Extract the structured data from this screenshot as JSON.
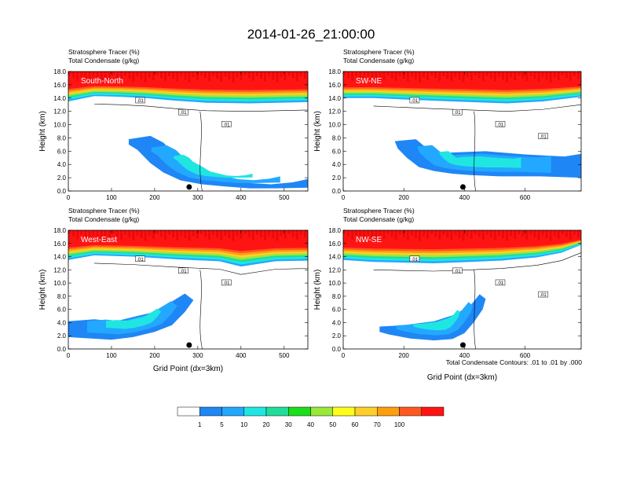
{
  "figure_title": "2014-01-26_21:00:00",
  "chart_data": [
    {
      "type": "heatmap",
      "subtitle_line1": "Stratosphere Tracer   (%)",
      "subtitle_line2": "Total Condensate   (g/kg)",
      "panel_label": "South-North",
      "ylabel": "Height (km)",
      "xlabel": "",
      "xlim": [
        0,
        555
      ],
      "ylim": [
        0.0,
        18.0
      ],
      "xticks": [
        "0",
        "100",
        "200",
        "300",
        "400",
        "500"
      ],
      "yticks": [
        "0.0",
        "2.0",
        "4.0",
        "6.0",
        "8.0",
        "10.0",
        "12.0",
        "14.0",
        "16.0",
        "18.0"
      ],
      "contour_labels": [
        ".01",
        ".01",
        ".01"
      ],
      "marker_x": 280
    },
    {
      "type": "heatmap",
      "subtitle_line1": "Stratosphere Tracer   (%)",
      "subtitle_line2": "Total Condensate   (g/kg)",
      "panel_label": "SW-NE",
      "ylabel": "Height (km)",
      "xlabel": "",
      "xlim": [
        0,
        785
      ],
      "ylim": [
        0.0,
        18.0
      ],
      "xticks": [
        "0",
        "200",
        "400",
        "600"
      ],
      "yticks": [
        "0.0",
        "2.0",
        "4.0",
        "6.0",
        "8.0",
        "10.0",
        "12.0",
        "14.0",
        "16.0",
        "18.0"
      ],
      "contour_labels": [
        ".01",
        ".01",
        ".01",
        ".01"
      ],
      "marker_x": 395
    },
    {
      "type": "heatmap",
      "subtitle_line1": "Stratosphere Tracer   (%)",
      "subtitle_line2": "Total Condensate   (g/kg)",
      "panel_label": "West-East",
      "ylabel": "Height (km)",
      "xlabel": "Grid Point (dx=3km)",
      "xlim": [
        0,
        555
      ],
      "ylim": [
        0.0,
        18.0
      ],
      "xticks": [
        "0",
        "100",
        "200",
        "300",
        "400",
        "500"
      ],
      "yticks": [
        "0.0",
        "2.0",
        "4.0",
        "6.0",
        "8.0",
        "10.0",
        "12.0",
        "14.0",
        "16.0",
        "18.0"
      ],
      "contour_labels": [
        ".01",
        ".01",
        ".01"
      ],
      "marker_x": 280
    },
    {
      "type": "heatmap",
      "subtitle_line1": "Stratosphere Tracer   (%)",
      "subtitle_line2": "Total Condensate   (g/kg)",
      "panel_label": "NW-SE",
      "ylabel": "Height (km)",
      "xlabel": "Grid Point (dx=3km)",
      "xlim": [
        0,
        785
      ],
      "ylim": [
        0.0,
        18.0
      ],
      "xticks": [
        "0",
        "200",
        "400",
        "600"
      ],
      "yticks": [
        "0.0",
        "2.0",
        "4.0",
        "6.0",
        "8.0",
        "10.0",
        "12.0",
        "14.0",
        "16.0",
        "18.0"
      ],
      "contour_labels": [
        ".01",
        ".01",
        ".01",
        ".01"
      ],
      "marker_x": 395
    }
  ],
  "contour_note": "Total Condensate Contours: .01 to .01 by .000",
  "colorbar": {
    "colors": [
      "#ffffff",
      "#1f86f5",
      "#23a8ff",
      "#20e6e1",
      "#20dd9c",
      "#1bde1d",
      "#99e83a",
      "#fefc1a",
      "#fece2a",
      "#fd9e0f",
      "#fe5821",
      "#ff1414"
    ],
    "labels": [
      "1",
      "5",
      "10",
      "20",
      "30",
      "40",
      "50",
      "60",
      "70",
      "100"
    ]
  }
}
